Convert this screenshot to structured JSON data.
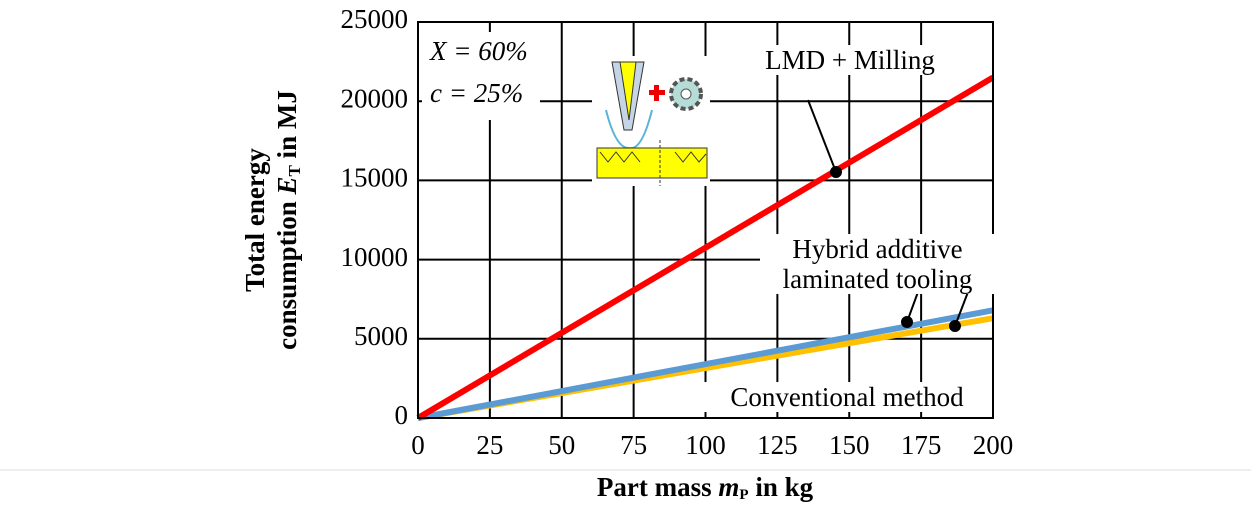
{
  "chart_data": {
    "type": "line",
    "x": [
      0,
      200
    ],
    "series": [
      {
        "name": "LMD + Milling",
        "color": "#ff0000",
        "values": [
          0,
          21500
        ]
      },
      {
        "name": "Hybrid additive laminated tooling",
        "color": "#5b9bd5",
        "values": [
          0,
          6800
        ]
      },
      {
        "name": "Conventional method",
        "color": "#ffc000",
        "values": [
          0,
          6300
        ]
      }
    ],
    "xlim": [
      0,
      200
    ],
    "xticks": [
      0,
      25,
      50,
      75,
      100,
      125,
      150,
      175,
      200
    ],
    "ylim": [
      0,
      25000
    ],
    "yticks": [
      0,
      5000,
      10000,
      15000,
      20000,
      25000
    ],
    "grid": true,
    "xlabel": {
      "pre": "Part mass ",
      "italic": "m",
      "sub": "P",
      "post": " in kg"
    },
    "ylabel": {
      "line1": "Total energy",
      "pre": "consumption ",
      "italic": "E",
      "sub": "T",
      "post": " in MJ"
    },
    "annotations": [
      "X = 60%",
      "c = 25%"
    ]
  }
}
